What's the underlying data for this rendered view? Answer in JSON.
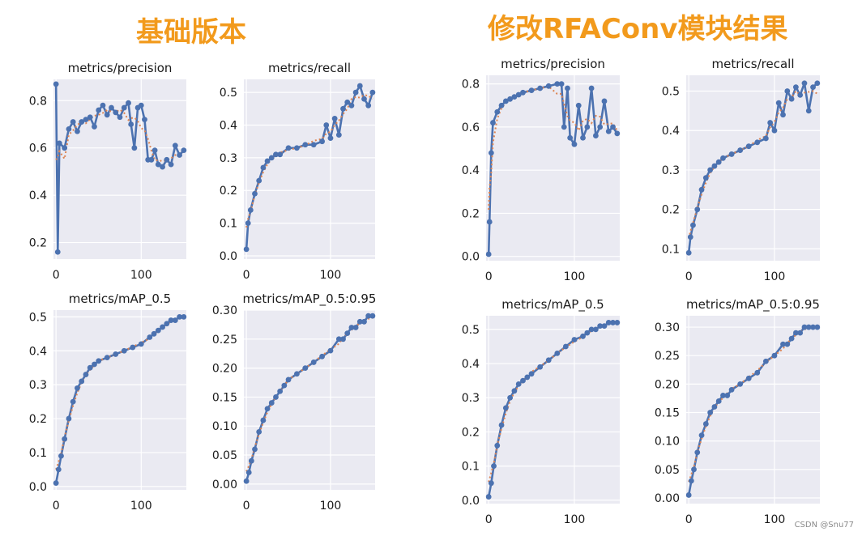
{
  "colors": {
    "title": "#f29a1c",
    "plot_bg": "#eaeaf2",
    "grid": "#ffffff",
    "results_line": "#4c72b0",
    "smooth_line": "#dd8452"
  },
  "group_titles": {
    "left": "基础版本",
    "right": "修改RFAConv模块结果"
  },
  "watermark": "CSDN @Snu77",
  "chart_data": [
    {
      "type": "line",
      "group": "left",
      "title": "metrics/precision",
      "xlim": [
        -3,
        153
      ],
      "ylim": [
        0.13,
        0.89
      ],
      "xticks": [
        0,
        100
      ],
      "xtick_labels": [
        "0",
        "100"
      ],
      "yticks": [
        0.2,
        0.4,
        0.6,
        0.8
      ],
      "ytick_labels": [
        "0.2",
        "0.4",
        "0.6",
        "0.8"
      ],
      "x": [
        0,
        2,
        4,
        10,
        15,
        20,
        25,
        30,
        35,
        40,
        45,
        50,
        55,
        60,
        65,
        70,
        75,
        80,
        85,
        88,
        92,
        96,
        100,
        104,
        108,
        112,
        116,
        120,
        125,
        130,
        135,
        140,
        145,
        150
      ],
      "values": [
        0.87,
        0.16,
        0.62,
        0.6,
        0.68,
        0.71,
        0.67,
        0.71,
        0.72,
        0.73,
        0.69,
        0.76,
        0.78,
        0.74,
        0.77,
        0.75,
        0.73,
        0.77,
        0.79,
        0.7,
        0.6,
        0.77,
        0.78,
        0.72,
        0.55,
        0.55,
        0.59,
        0.53,
        0.52,
        0.55,
        0.53,
        0.61,
        0.57,
        0.59
      ]
    },
    {
      "type": "line",
      "group": "left",
      "title": "metrics/recall",
      "xlim": [
        -3,
        153
      ],
      "ylim": [
        -0.01,
        0.54
      ],
      "xticks": [
        0,
        100
      ],
      "xtick_labels": [
        "0",
        "100"
      ],
      "yticks": [
        0.0,
        0.1,
        0.2,
        0.3,
        0.4,
        0.5
      ],
      "ytick_labels": [
        "0.0",
        "0.1",
        "0.2",
        "0.3",
        "0.4",
        "0.5"
      ],
      "x": [
        0,
        2,
        5,
        10,
        15,
        20,
        25,
        30,
        35,
        40,
        50,
        60,
        70,
        80,
        90,
        95,
        100,
        105,
        110,
        115,
        120,
        125,
        130,
        135,
        140,
        145,
        150
      ],
      "values": [
        0.02,
        0.1,
        0.14,
        0.19,
        0.23,
        0.27,
        0.29,
        0.3,
        0.31,
        0.31,
        0.33,
        0.33,
        0.34,
        0.34,
        0.35,
        0.4,
        0.36,
        0.42,
        0.37,
        0.45,
        0.47,
        0.46,
        0.5,
        0.52,
        0.48,
        0.46,
        0.5
      ]
    },
    {
      "type": "line",
      "group": "left",
      "title": "metrics/mAP_0.5",
      "xlim": [
        -3,
        153
      ],
      "ylim": [
        -0.01,
        0.52
      ],
      "xticks": [
        0,
        100
      ],
      "xtick_labels": [
        "0",
        "100"
      ],
      "yticks": [
        0.0,
        0.1,
        0.2,
        0.3,
        0.4,
        0.5
      ],
      "ytick_labels": [
        "0.0",
        "0.1",
        "0.2",
        "0.3",
        "0.4",
        "0.5"
      ],
      "x": [
        0,
        3,
        6,
        10,
        15,
        20,
        25,
        30,
        35,
        40,
        45,
        50,
        60,
        70,
        80,
        90,
        100,
        110,
        115,
        120,
        125,
        130,
        135,
        140,
        145,
        150
      ],
      "values": [
        0.01,
        0.05,
        0.09,
        0.14,
        0.2,
        0.25,
        0.29,
        0.31,
        0.33,
        0.35,
        0.36,
        0.37,
        0.38,
        0.39,
        0.4,
        0.41,
        0.42,
        0.44,
        0.45,
        0.46,
        0.47,
        0.48,
        0.49,
        0.49,
        0.5,
        0.5
      ]
    },
    {
      "type": "line",
      "group": "left",
      "title": "metrics/mAP_0.5:0.95",
      "xlim": [
        -3,
        153
      ],
      "ylim": [
        -0.01,
        0.3
      ],
      "xticks": [
        0,
        100
      ],
      "xtick_labels": [
        "0",
        "100"
      ],
      "yticks": [
        0.0,
        0.05,
        0.1,
        0.15,
        0.2,
        0.25,
        0.3
      ],
      "ytick_labels": [
        "0.00",
        "0.05",
        "0.10",
        "0.15",
        "0.20",
        "0.25",
        "0.30"
      ],
      "x": [
        0,
        3,
        6,
        10,
        15,
        20,
        25,
        30,
        35,
        40,
        45,
        50,
        60,
        70,
        80,
        90,
        100,
        110,
        115,
        120,
        125,
        130,
        135,
        140,
        145,
        150
      ],
      "values": [
        0.005,
        0.02,
        0.04,
        0.06,
        0.09,
        0.11,
        0.13,
        0.14,
        0.15,
        0.16,
        0.17,
        0.18,
        0.19,
        0.2,
        0.21,
        0.22,
        0.23,
        0.25,
        0.25,
        0.26,
        0.27,
        0.27,
        0.28,
        0.28,
        0.29,
        0.29
      ]
    },
    {
      "type": "line",
      "group": "right",
      "title": "metrics/precision",
      "xlim": [
        -3,
        153
      ],
      "ylim": [
        -0.02,
        0.84
      ],
      "xticks": [
        0,
        100
      ],
      "xtick_labels": [
        "0",
        "100"
      ],
      "yticks": [
        0.0,
        0.2,
        0.4,
        0.6,
        0.8
      ],
      "ytick_labels": [
        "0.0",
        "0.2",
        "0.4",
        "0.6",
        "0.8"
      ],
      "x": [
        0,
        1,
        3,
        5,
        10,
        15,
        20,
        25,
        30,
        35,
        40,
        50,
        60,
        70,
        80,
        85,
        88,
        92,
        95,
        100,
        105,
        110,
        115,
        120,
        125,
        130,
        135,
        140,
        145,
        150
      ],
      "values": [
        0.01,
        0.16,
        0.48,
        0.62,
        0.67,
        0.7,
        0.72,
        0.73,
        0.74,
        0.75,
        0.76,
        0.77,
        0.78,
        0.79,
        0.8,
        0.8,
        0.6,
        0.78,
        0.55,
        0.52,
        0.7,
        0.55,
        0.6,
        0.78,
        0.56,
        0.6,
        0.72,
        0.58,
        0.6,
        0.57
      ]
    },
    {
      "type": "line",
      "group": "right",
      "title": "metrics/recall",
      "xlim": [
        -3,
        153
      ],
      "ylim": [
        0.07,
        0.54
      ],
      "xticks": [
        0,
        100
      ],
      "xtick_labels": [
        "0",
        "100"
      ],
      "yticks": [
        0.1,
        0.2,
        0.3,
        0.4,
        0.5
      ],
      "ytick_labels": [
        "0.1",
        "0.2",
        "0.3",
        "0.4",
        "0.5"
      ],
      "x": [
        0,
        2,
        5,
        10,
        15,
        20,
        25,
        30,
        35,
        40,
        50,
        60,
        70,
        80,
        90,
        95,
        100,
        105,
        110,
        115,
        120,
        125,
        130,
        135,
        140,
        145,
        150
      ],
      "values": [
        0.09,
        0.13,
        0.16,
        0.2,
        0.25,
        0.28,
        0.3,
        0.31,
        0.32,
        0.33,
        0.34,
        0.35,
        0.36,
        0.37,
        0.38,
        0.42,
        0.4,
        0.47,
        0.44,
        0.5,
        0.48,
        0.51,
        0.49,
        0.52,
        0.45,
        0.51,
        0.52
      ]
    },
    {
      "type": "line",
      "group": "right",
      "title": "metrics/mAP_0.5",
      "xlim": [
        -3,
        153
      ],
      "ylim": [
        -0.01,
        0.54
      ],
      "xticks": [
        0,
        100
      ],
      "xtick_labels": [
        "0",
        "100"
      ],
      "yticks": [
        0.0,
        0.1,
        0.2,
        0.3,
        0.4,
        0.5
      ],
      "ytick_labels": [
        "0.0",
        "0.1",
        "0.2",
        "0.3",
        "0.4",
        "0.5"
      ],
      "x": [
        0,
        3,
        6,
        10,
        15,
        20,
        25,
        30,
        35,
        40,
        45,
        50,
        60,
        70,
        80,
        90,
        100,
        110,
        115,
        120,
        125,
        130,
        135,
        140,
        145,
        150
      ],
      "values": [
        0.01,
        0.05,
        0.1,
        0.16,
        0.22,
        0.27,
        0.3,
        0.32,
        0.34,
        0.35,
        0.36,
        0.37,
        0.39,
        0.41,
        0.43,
        0.45,
        0.47,
        0.48,
        0.49,
        0.5,
        0.5,
        0.51,
        0.51,
        0.52,
        0.52,
        0.52
      ]
    },
    {
      "type": "line",
      "group": "right",
      "title": "metrics/mAP_0.5:0.95",
      "xlim": [
        -3,
        153
      ],
      "ylim": [
        -0.01,
        0.32
      ],
      "xticks": [
        0,
        100
      ],
      "xtick_labels": [
        "0",
        "100"
      ],
      "yticks": [
        0.0,
        0.05,
        0.1,
        0.15,
        0.2,
        0.25,
        0.3
      ],
      "ytick_labels": [
        "0.00",
        "0.05",
        "0.10",
        "0.15",
        "0.20",
        "0.25",
        "0.30"
      ],
      "x": [
        0,
        3,
        6,
        10,
        15,
        20,
        25,
        30,
        35,
        40,
        45,
        50,
        60,
        70,
        80,
        90,
        100,
        110,
        115,
        120,
        125,
        130,
        135,
        140,
        145,
        150
      ],
      "values": [
        0.005,
        0.03,
        0.05,
        0.08,
        0.11,
        0.13,
        0.15,
        0.16,
        0.17,
        0.18,
        0.18,
        0.19,
        0.2,
        0.21,
        0.22,
        0.24,
        0.25,
        0.27,
        0.27,
        0.28,
        0.29,
        0.29,
        0.3,
        0.3,
        0.3,
        0.3
      ]
    }
  ]
}
